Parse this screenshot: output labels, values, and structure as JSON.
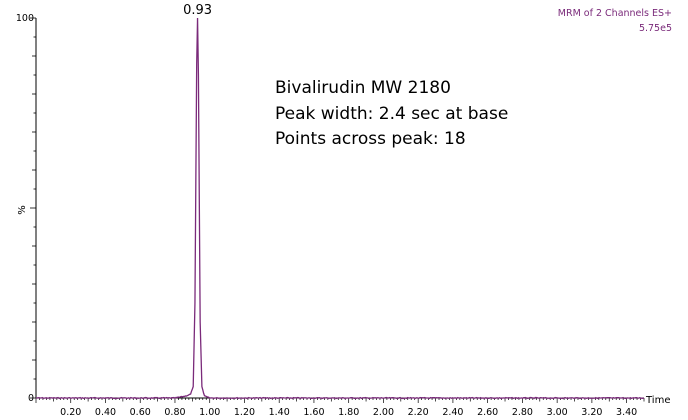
{
  "chart_data": {
    "type": "line",
    "title": "",
    "xlabel": "Time",
    "ylabel": "%",
    "xlim": [
      0.0,
      3.5
    ],
    "ylim": [
      0,
      100
    ],
    "x_ticks": [
      0.2,
      0.4,
      0.6,
      0.8,
      1.0,
      1.2,
      1.4,
      1.6,
      1.8,
      2.0,
      2.2,
      2.4,
      2.6,
      2.8,
      3.0,
      3.2,
      3.4
    ],
    "x_tick_labels": [
      "0.20",
      "0.40",
      "0.60",
      "0.80",
      "1.00",
      "1.20",
      "1.40",
      "1.60",
      "1.80",
      "2.00",
      "2.20",
      "2.40",
      "2.60",
      "2.80",
      "3.00",
      "3.20",
      "3.40"
    ],
    "y_tick_labels": [
      {
        "value": 100,
        "label": "100"
      },
      {
        "value": 0,
        "label": "0"
      }
    ],
    "line_color": "#7a2a7a",
    "series": [
      {
        "x": [
          0.0,
          0.2,
          0.4,
          0.6,
          0.8,
          0.86,
          0.89,
          0.905,
          0.915,
          0.925,
          0.93,
          0.935,
          0.945,
          0.955,
          0.97,
          1.0,
          1.2,
          1.5,
          2.0,
          2.5,
          3.0,
          3.5
        ],
        "y": [
          0,
          0,
          0,
          0,
          0,
          0.5,
          1.0,
          3,
          25,
          88,
          100,
          85,
          20,
          3,
          0.5,
          0,
          0,
          0,
          0,
          0,
          0,
          0
        ]
      }
    ],
    "peak_label": "0.93",
    "annotations": [
      "Bivalirudin MW 2180",
      "Peak width: 2.4 sec at base",
      "Points across peak: 18"
    ],
    "info": [
      "MRM of 2 Channels ES+",
      "5.75e5"
    ]
  }
}
